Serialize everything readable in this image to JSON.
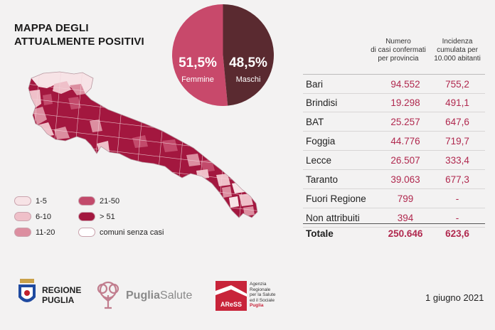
{
  "title": {
    "line1": "MAPPA DEGLI",
    "line2": "ATTUALMENTE POSITIVI"
  },
  "gender": {
    "female": {
      "pct": "51,5%",
      "label": "Femmine",
      "value": 51.5,
      "color": "#c8496b"
    },
    "male": {
      "pct": "48,5%",
      "label": "Maschi",
      "value": 48.5,
      "color": "#5a2a30"
    }
  },
  "legend": [
    {
      "label": "1-5",
      "color": "#f7e3e6"
    },
    {
      "label": "6-10",
      "color": "#efc0c9"
    },
    {
      "label": "11-20",
      "color": "#dc8ea0"
    },
    {
      "label": "21-50",
      "color": "#c24a6b"
    },
    {
      "label": "> 51",
      "color": "#a3173f"
    },
    {
      "label": "comuni senza casi",
      "color": "#ffffff"
    }
  ],
  "table": {
    "col1_header": [
      "Numero",
      "di casi confermati",
      "per provincia"
    ],
    "col2_header": [
      "Incidenza",
      "cumulata per",
      "10.000 abitanti"
    ],
    "rows": [
      {
        "name": "Bari",
        "cases": "94.552",
        "incidence": "755,2"
      },
      {
        "name": "Brindisi",
        "cases": "19.298",
        "incidence": "491,1"
      },
      {
        "name": "BAT",
        "cases": "25.257",
        "incidence": "647,6"
      },
      {
        "name": "Foggia",
        "cases": "44.776",
        "incidence": "719,7"
      },
      {
        "name": "Lecce",
        "cases": "26.507",
        "incidence": "333,4"
      },
      {
        "name": "Taranto",
        "cases": "39.063",
        "incidence": "677,3"
      },
      {
        "name": "Fuori Regione",
        "cases": "799",
        "incidence": "-"
      },
      {
        "name": "Non attribuiti",
        "cases": "394",
        "incidence": "-"
      }
    ],
    "total": {
      "name": "Totale",
      "cases": "250.646",
      "incidence": "623,6"
    }
  },
  "logos": {
    "regione_line1": "REGIONE",
    "regione_line2": "PUGLIA",
    "pugliasalute_a": "Puglia",
    "pugliasalute_b": "Salute",
    "aress_mark": "AReSS",
    "aress_text": [
      "Agenzia",
      "Regionale",
      "per la Salute",
      "ed il Sociale",
      "Puglia"
    ]
  },
  "date": "1 giugno 2021"
}
